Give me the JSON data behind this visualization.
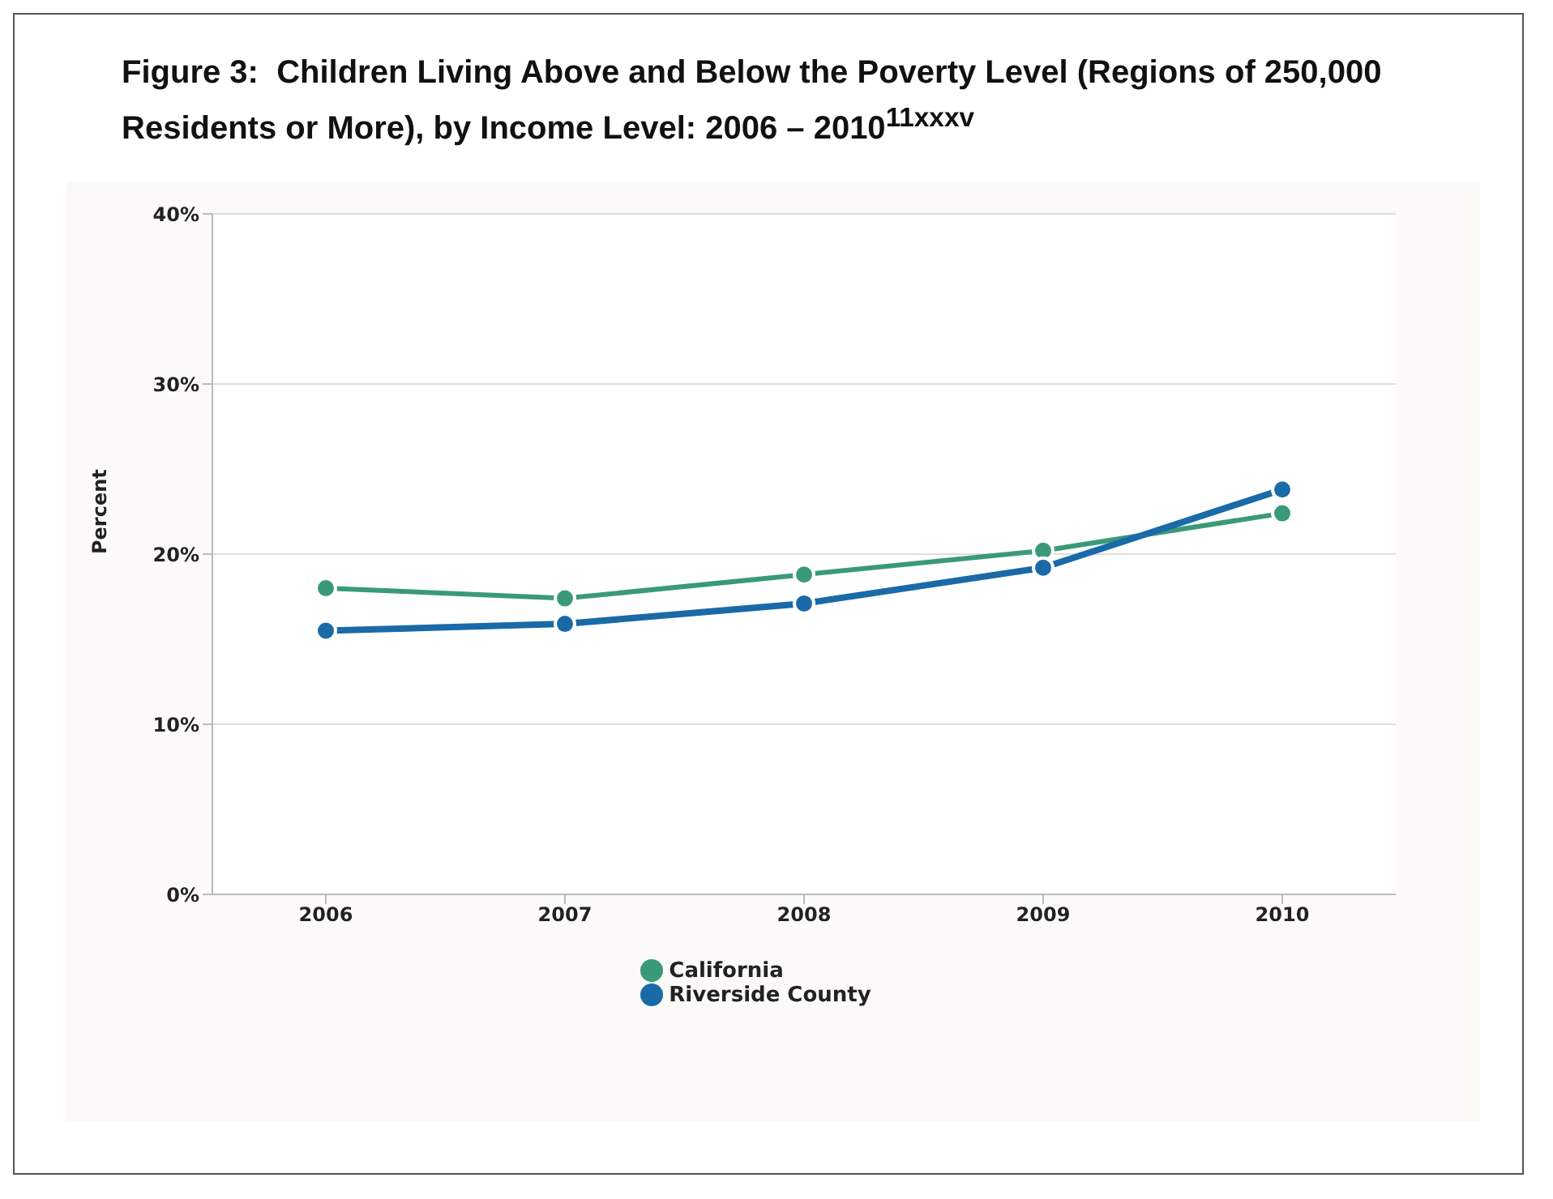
{
  "chart_data": {
    "type": "line",
    "title": "Figure 3:  Children Living Above and Below the Poverty Level (Regions of 250,000 Residents or More), by Income Level: 2006 – 2010$^{11xxxv}$",
    "ylabel": "Percent",
    "categories": [
      "2006",
      "2007",
      "2008",
      "2009",
      "2010"
    ],
    "series": [
      {
        "name": "California",
        "color": "#3a9a78",
        "values": [
          18.0,
          17.4,
          18.8,
          20.2,
          22.4
        ]
      },
      {
        "name": "Riverside County",
        "color": "#1a6aa8",
        "values": [
          15.5,
          15.9,
          17.1,
          19.2,
          23.8
        ]
      }
    ],
    "ylim": [
      0,
      40
    ],
    "yticks": [
      {
        "value": 0,
        "label": "0%"
      },
      {
        "value": 10,
        "label": "10%"
      },
      {
        "value": 20,
        "label": "20%"
      },
      {
        "value": 30,
        "label": "30%"
      },
      {
        "value": 40,
        "label": "40%"
      }
    ],
    "grid": "y",
    "legend": "bottom",
    "marker": "circle",
    "line_style": "solid"
  }
}
